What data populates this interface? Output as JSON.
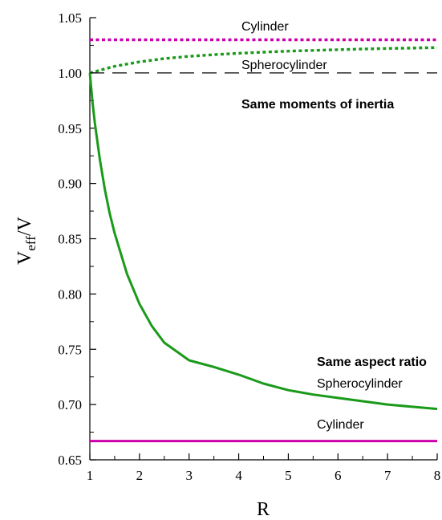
{
  "chart_data": {
    "type": "line",
    "title": "",
    "xlabel": "R",
    "ylabel_main": "V",
    "ylabel_sub": "eff",
    "ylabel_tail": "/V",
    "xlim": [
      1,
      8
    ],
    "ylim": [
      0.65,
      1.05
    ],
    "xticks": [
      1,
      2,
      3,
      4,
      5,
      6,
      7,
      8
    ],
    "yticks": [
      0.65,
      0.7,
      0.75,
      0.8,
      0.85,
      0.9,
      0.95,
      1.0,
      1.05
    ],
    "grid": false,
    "legend": "none",
    "series": [
      {
        "name": "Cylinder",
        "group": "Same moments of inertia",
        "style": "dotted",
        "color": "#cc00aa",
        "x": [
          1,
          8
        ],
        "y": [
          1.03,
          1.03
        ]
      },
      {
        "name": "Spherocylinder",
        "group": "Same moments of inertia",
        "style": "dotted",
        "color": "#1a9a1a",
        "x": [
          1,
          1.5,
          2,
          2.5,
          3,
          3.5,
          4,
          4.5,
          5,
          5.5,
          6,
          6.5,
          7,
          7.5,
          8
        ],
        "y": [
          1.0,
          1.006,
          1.01,
          1.013,
          1.015,
          1.0165,
          1.0178,
          1.0188,
          1.0197,
          1.0204,
          1.021,
          1.0216,
          1.0221,
          1.0225,
          1.023
        ]
      },
      {
        "name": "",
        "group": "reference",
        "style": "dashed",
        "color": "#000000",
        "x": [
          1,
          8
        ],
        "y": [
          1.0,
          1.0
        ]
      },
      {
        "name": "Spherocylinder",
        "group": "Same aspect ratio",
        "style": "solid",
        "color": "#1a9a1a",
        "x": [
          1,
          1.05,
          1.1,
          1.2,
          1.3,
          1.4,
          1.5,
          1.75,
          2,
          2.25,
          2.5,
          3,
          3.5,
          4,
          4.5,
          5,
          5.5,
          6,
          6.5,
          7,
          7.5,
          8
        ],
        "y": [
          1.0,
          0.975,
          0.955,
          0.922,
          0.895,
          0.873,
          0.855,
          0.818,
          0.791,
          0.771,
          0.756,
          0.74,
          0.734,
          0.727,
          0.719,
          0.713,
          0.709,
          0.706,
          0.703,
          0.7,
          0.698,
          0.696
        ]
      },
      {
        "name": "Cylinder",
        "group": "Same aspect ratio",
        "style": "solid",
        "color": "#cc00aa",
        "x": [
          1,
          8
        ],
        "y": [
          0.667,
          0.667
        ]
      }
    ],
    "annotations": {
      "cyl_top": "Cylinder",
      "sph_top": "Spherocylinder",
      "moments": "Same moments of inertia",
      "aspect": "Same aspect ratio",
      "sph_bottom": "Spherocylinder",
      "cyl_bottom": "Cylinder"
    }
  }
}
